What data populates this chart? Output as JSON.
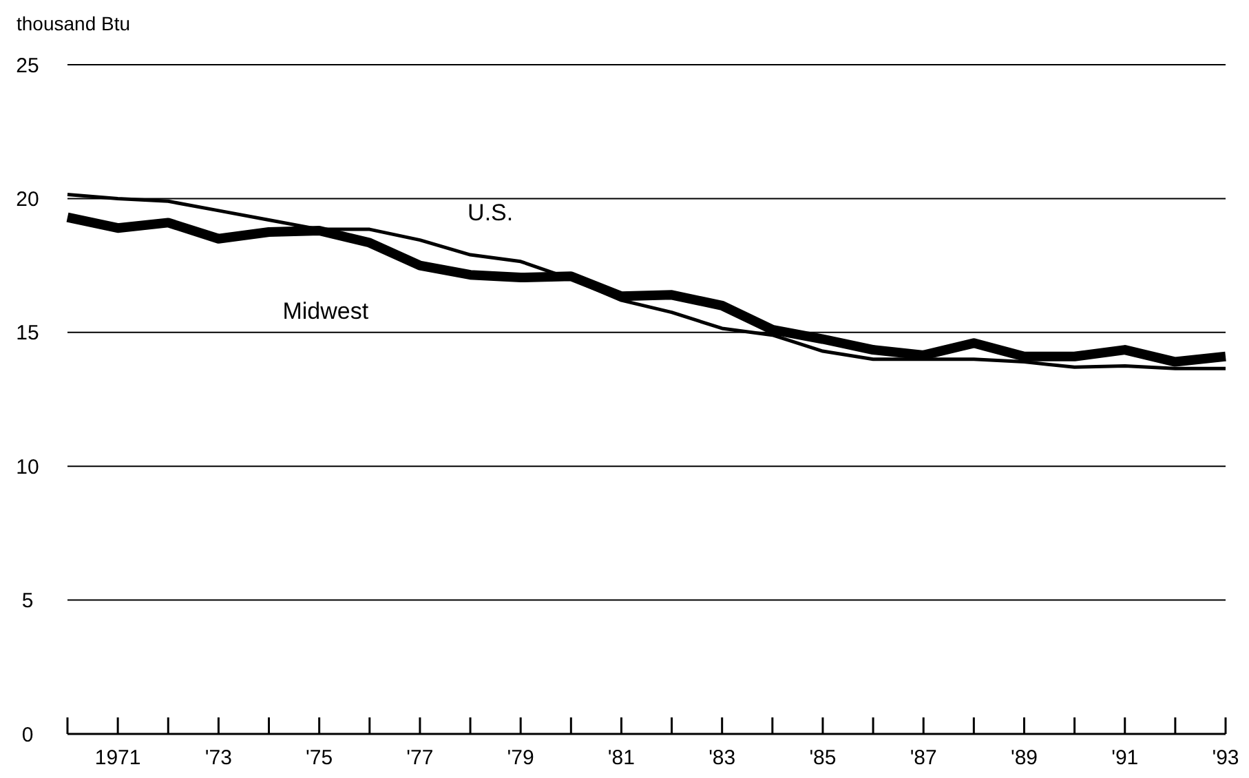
{
  "chart_data": {
    "type": "line",
    "ylabel": "thousand Btu",
    "x": [
      1970,
      1971,
      1972,
      1973,
      1974,
      1975,
      1976,
      1977,
      1978,
      1979,
      1980,
      1981,
      1982,
      1983,
      1984,
      1985,
      1986,
      1987,
      1988,
      1989,
      1990,
      1991,
      1992,
      1993
    ],
    "series": [
      {
        "name": "U.S.",
        "color": "#000000",
        "values": [
          20.15,
          20.0,
          19.9,
          19.55,
          19.2,
          18.85,
          18.85,
          18.45,
          17.9,
          17.65,
          17.0,
          16.2,
          15.75,
          15.15,
          14.9,
          14.3,
          14.0,
          14.0,
          14.0,
          13.9,
          13.7,
          13.75,
          13.65,
          13.65
        ]
      },
      {
        "name": "Midwest",
        "color": "#000000",
        "values": [
          19.3,
          18.9,
          19.1,
          18.5,
          18.75,
          18.8,
          18.35,
          17.5,
          17.15,
          17.05,
          17.1,
          16.35,
          16.4,
          16.0,
          15.1,
          14.75,
          14.35,
          14.15,
          14.6,
          14.1,
          14.1,
          14.35,
          13.9,
          14.1
        ]
      }
    ],
    "xlim": [
      1970,
      1993
    ],
    "xticks": [
      {
        "value": 1970,
        "label": null
      },
      1971,
      {
        "value": 1972,
        "label": null
      },
      {
        "value": 1973,
        "label": "'73"
      },
      {
        "value": 1974,
        "label": null
      },
      {
        "value": 1975,
        "label": "'75"
      },
      {
        "value": 1976,
        "label": null
      },
      {
        "value": 1977,
        "label": "'77"
      },
      {
        "value": 1978,
        "label": null
      },
      {
        "value": 1979,
        "label": "'79"
      },
      {
        "value": 1980,
        "label": null
      },
      {
        "value": 1981,
        "label": "'81"
      },
      {
        "value": 1982,
        "label": null
      },
      {
        "value": 1983,
        "label": "'83"
      },
      {
        "value": 1984,
        "label": null
      },
      {
        "value": 1985,
        "label": "'85"
      },
      {
        "value": 1986,
        "label": null
      },
      {
        "value": 1987,
        "label": "'87"
      },
      {
        "value": 1988,
        "label": null
      },
      {
        "value": 1989,
        "label": "'89"
      },
      {
        "value": 1990,
        "label": null
      },
      {
        "value": 1991,
        "label": "'91"
      },
      {
        "value": 1992,
        "label": null
      },
      {
        "value": 1993,
        "label": "'93"
      }
    ],
    "ylim": [
      0,
      25
    ],
    "yticks": [
      0,
      5,
      10,
      15,
      20,
      25
    ],
    "grid": "y",
    "legend": false,
    "marker": "none",
    "line_style": "solid"
  }
}
